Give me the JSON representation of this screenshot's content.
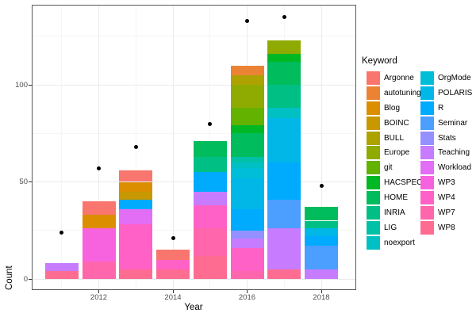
{
  "chart_data": {
    "type": "bar",
    "stacked": true,
    "title": "",
    "xlabel": "Year",
    "ylabel": "Count",
    "legend_title": "Keyword",
    "legend_position": "right",
    "grid": true,
    "x_ticks": [
      "2012",
      "2014",
      "2016",
      "2018"
    ],
    "y_ticks": [
      "0",
      "50",
      "100"
    ],
    "ylim": [
      0,
      141
    ],
    "x_range": [
      2011,
      2018
    ],
    "keywords": [
      "Argonne",
      "autotuning",
      "Blog",
      "BOINC",
      "BULL",
      "Europe",
      "git",
      "HACSPECIS",
      "HOME",
      "INRIA",
      "LIG",
      "noexport",
      "OrgMode",
      "POLARIS",
      "R",
      "Seminar",
      "Stats",
      "Teaching",
      "Workload",
      "WP3",
      "WP4",
      "WP7",
      "WP8"
    ],
    "palette": {
      "Argonne": "#F8766D",
      "autotuning": "#EB8335",
      "Blog": "#DB8E00",
      "BOINC": "#C79800",
      "BULL": "#AEA200",
      "Europe": "#8FAA00",
      "git": "#64B200",
      "HACSPECIS": "#00B823",
      "HOME": "#00BC5C",
      "INRIA": "#00BF85",
      "LIG": "#00C1A7",
      "noexport": "#00C0C3",
      "OrgMode": "#00BDD8",
      "POLARIS": "#00B7E8",
      "R": "#00ABFD",
      "Seminar": "#4C9EFF",
      "Stats": "#9590FF",
      "Teaching": "#C77CFF",
      "Workload": "#E36EF6",
      "WP3": "#F763DF",
      "WP4": "#FF61C7",
      "WP7": "#FF66AC",
      "WP8": "#FF6C91"
    },
    "point_color": "#000000",
    "years": [
      {
        "year": 2011,
        "dot": 24,
        "total": 8,
        "stack": [
          [
            "WP8",
            4
          ],
          [
            "Teaching",
            4
          ]
        ]
      },
      {
        "year": 2012,
        "dot": 57,
        "total": 40,
        "stack": [
          [
            "WP7",
            9
          ],
          [
            "WP3",
            17
          ],
          [
            "Blog",
            7
          ],
          [
            "Argonne",
            7
          ]
        ]
      },
      {
        "year": 2013,
        "dot": 68,
        "total": 56,
        "stack": [
          [
            "WP8",
            5
          ],
          [
            "WP4",
            23
          ],
          [
            "Workload",
            8
          ],
          [
            "R",
            5
          ],
          [
            "BOINC",
            4
          ],
          [
            "Blog",
            5
          ],
          [
            "Argonne",
            6
          ]
        ]
      },
      {
        "year": 2014,
        "dot": 21,
        "total": 15,
        "stack": [
          [
            "WP8",
            5
          ],
          [
            "WP4",
            5
          ],
          [
            "Argonne",
            5
          ]
        ]
      },
      {
        "year": 2015,
        "dot": 80,
        "total": 71,
        "stack": [
          [
            "WP8",
            12
          ],
          [
            "WP7",
            14
          ],
          [
            "WP4",
            12
          ],
          [
            "Teaching",
            7
          ],
          [
            "R",
            10
          ],
          [
            "INRIA",
            8
          ],
          [
            "HOME",
            8
          ]
        ]
      },
      {
        "year": 2016,
        "dot": 133,
        "total": 110,
        "stack": [
          [
            "WP7",
            4
          ],
          [
            "WP4",
            12
          ],
          [
            "Teaching",
            5
          ],
          [
            "Stats",
            4
          ],
          [
            "R",
            11
          ],
          [
            "POLARIS",
            16
          ],
          [
            "OrgMode",
            5
          ],
          [
            "noexport",
            3
          ],
          [
            "LIG",
            3
          ],
          [
            "HOME",
            12
          ],
          [
            "HACSPECIS",
            4
          ],
          [
            "git",
            9
          ],
          [
            "Europe",
            12
          ],
          [
            "BULL",
            5
          ],
          [
            "autotuning",
            5
          ]
        ]
      },
      {
        "year": 2017,
        "dot": 135,
        "total": 123,
        "stack": [
          [
            "WP8",
            5
          ],
          [
            "Teaching",
            21
          ],
          [
            "Seminar",
            15
          ],
          [
            "R",
            19
          ],
          [
            "POLARIS",
            23
          ],
          [
            "noexport",
            5
          ],
          [
            "INRIA",
            12
          ],
          [
            "HOME",
            12
          ],
          [
            "HACSPECIS",
            4
          ],
          [
            "Europe",
            7
          ]
        ]
      },
      {
        "year": 2018,
        "dot": 48,
        "total": 37,
        "stack": [
          [
            "Teaching",
            5
          ],
          [
            "Seminar",
            12
          ],
          [
            "R",
            5
          ],
          [
            "POLARIS",
            4
          ],
          [
            "INRIA",
            4
          ],
          [
            "HOME",
            7
          ]
        ]
      }
    ]
  }
}
